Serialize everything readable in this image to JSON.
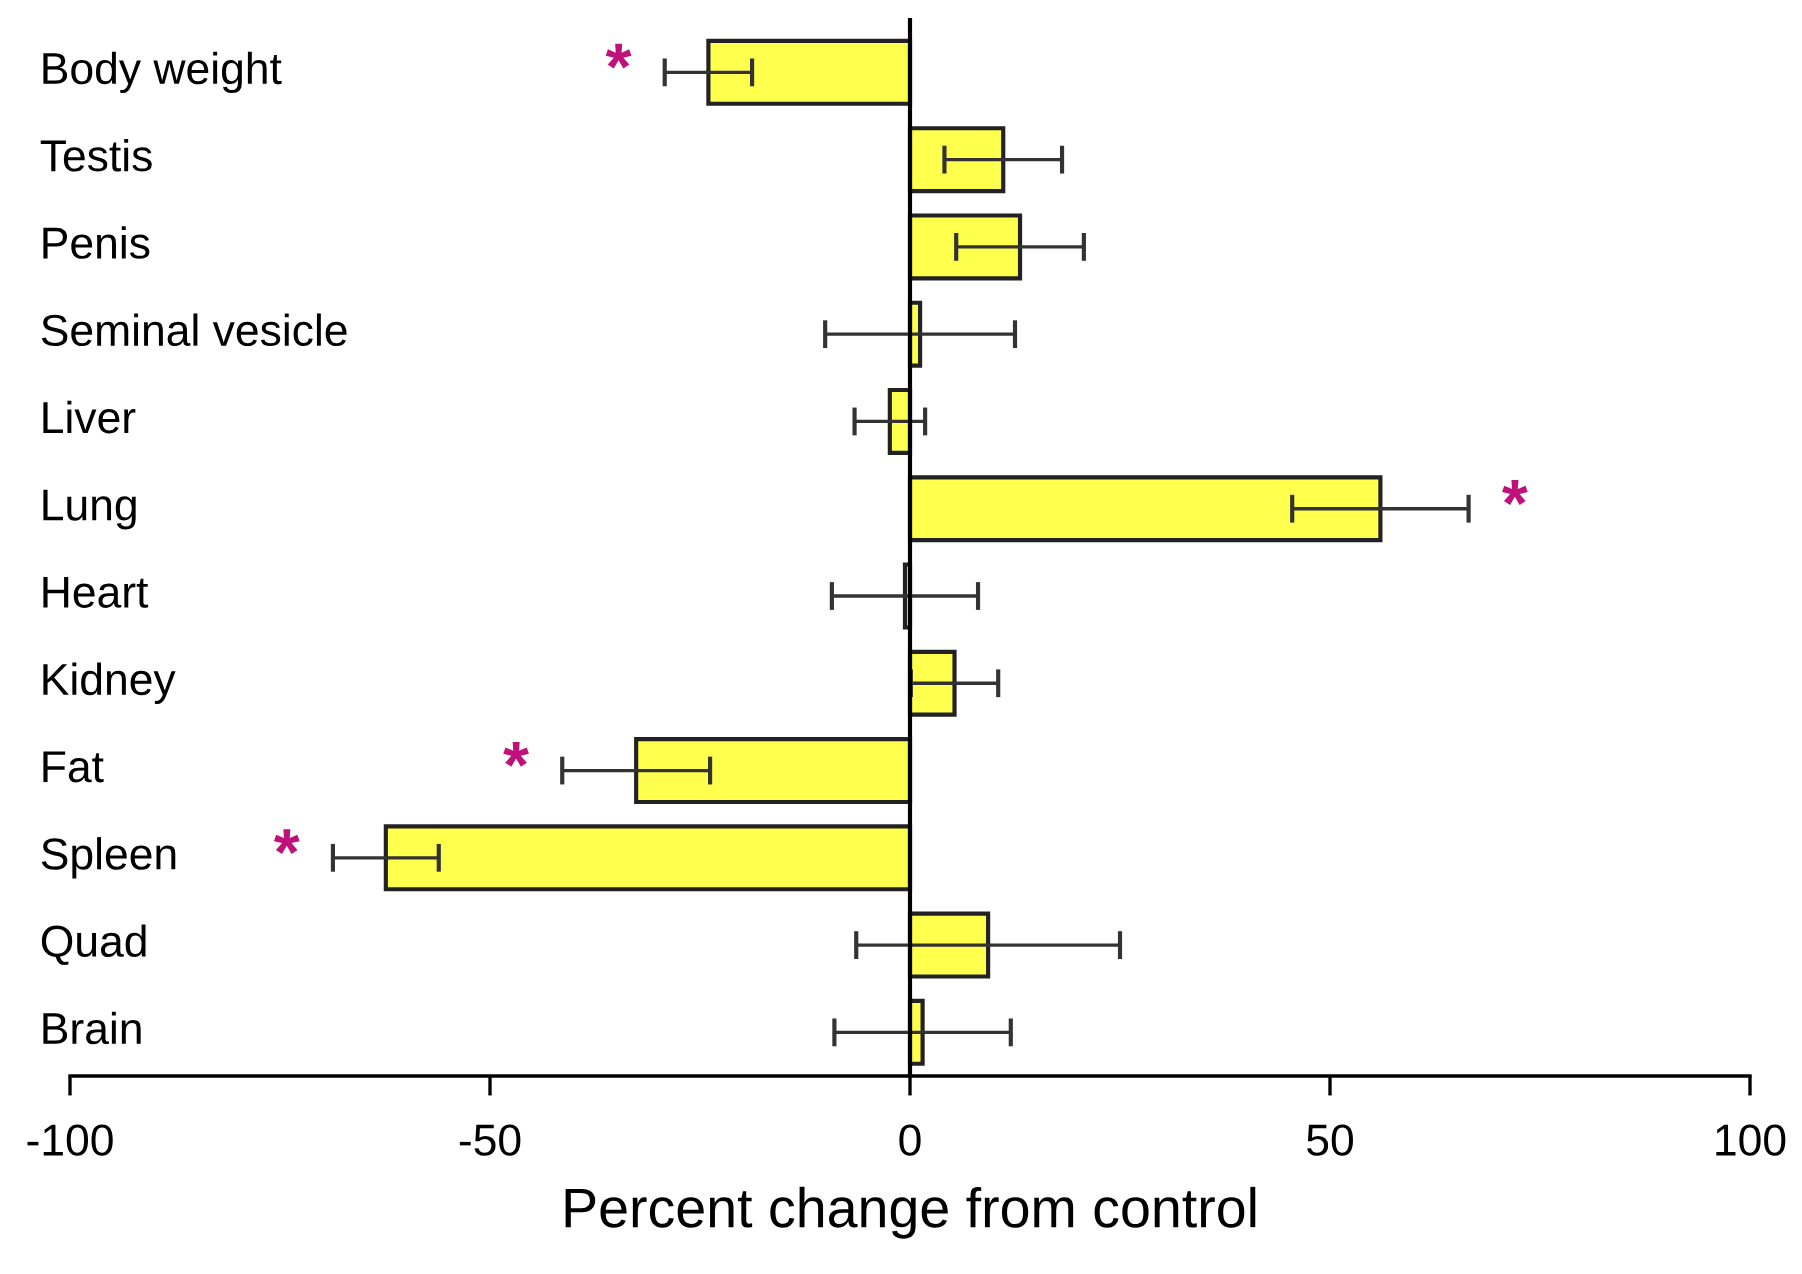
{
  "chart_data": {
    "type": "bar",
    "orientation": "horizontal",
    "xlabel": "Percent change from control",
    "categories": [
      "Body weight",
      "Testis",
      "Penis",
      "Seminal vesicle",
      "Liver",
      "Lung",
      "Heart",
      "Kidney",
      "Fat",
      "Spleen",
      "Quad",
      "Brain"
    ],
    "values": [
      -24,
      11.1,
      13.1,
      1.2,
      -2.4,
      56,
      -0.6,
      5.3,
      -32.6,
      -62.4,
      9.3,
      1.5
    ],
    "errors": [
      5.2,
      7,
      7.6,
      11.3,
      4.2,
      10.5,
      8.7,
      5.2,
      8.8,
      6.3,
      15.7,
      10.5
    ],
    "color": "#ffff4d",
    "xlim": [
      -100,
      100
    ],
    "xticks": [
      -100,
      -50,
      0,
      50,
      100
    ],
    "annotations": [
      {
        "text": "*",
        "x": -24,
        "y": "Body weight"
      },
      {
        "text": "*",
        "x": 56,
        "y": "Lung"
      },
      {
        "text": "*",
        "x": -32.6,
        "y": "Fat"
      },
      {
        "text": "*",
        "x": -62.4,
        "y": "Spleen"
      }
    ]
  }
}
